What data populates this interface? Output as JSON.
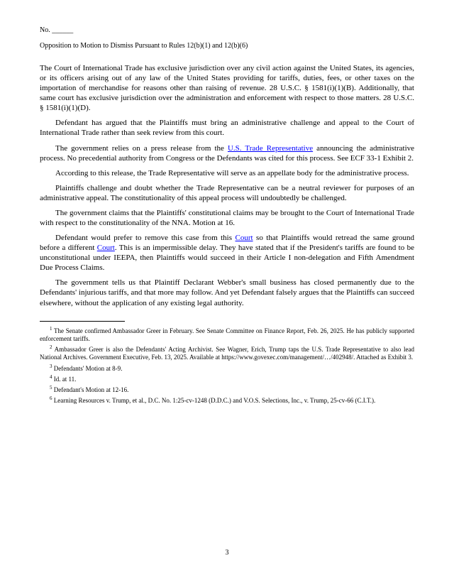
{
  "header": {
    "line1": "No. ______",
    "line2": "Opposition to Motion to Dismiss Pursuant to Rules 12(b)(1) and 12(b)(6)"
  },
  "paragraphs": [
    "The Court of International Trade has exclusive jurisdiction over any civil action against the United States, its agencies, or its officers arising out of any law of the United States providing for tariffs, duties, fees, or other taxes on the importation of merchandise for reasons other than raising of revenue. 28 U.S.C. § 1581(i)(1)(B). Additionally, that same court has exclusive jurisdiction over the administration and enforcement with respect to those matters. 28 U.S.C. § 1581(i)(1)(D).",
    "Defendant has argued that the Plaintiffs must bring an administrative challenge and appeal to the Court of International Trade rather than seek review from this court.",
    "The government relies on a press release from the ",
    "According to this release, the Trade Representative will serve as an appellate body for the administrative process.",
    "Plaintiffs challenge and doubt whether the Trade Representative can be a neutral reviewer for purposes of an administrative appeal. The constitutionality of this appeal process will undoubtedly be challenged.",
    "The government claims that the Plaintiffs' constitutional claims may be brought to the Court of International Trade with respect to the constitutionality of the NNA. Motion at 16.",
    "Defendant would prefer to remove this case from this ",
    ". This is an impermissible delay. They have stated that if the President's tariffs are found to be unconstitutional under IEEPA, then Plaintiffs would succeed in their Article I non-delegation and Fifth Amendment Due Process Claims.",
    "The government tells us that Plaintiff Declarant Webber's small business has closed permanently due to the Defendants' injurious tariffs, and that more may follow. And yet Defendant falsely argues that the Plaintiffs can succeed elsewhere, without the application of any existing legal authority."
  ],
  "link1_text": "U.S. Trade Representative",
  "link1_tail": " announcing the administrative process. No precedential authority from Congress or the Defendants was cited for this process. See ECF 33-1 Exhibit 2.",
  "link2_pre": "Court",
  "link2_tail": " so that Plaintiffs would retread the same ground before a different ",
  "footnotes": [
    {
      "num": "1",
      "text": "The Senate confirmed Ambassador Greer in February. See Senate Committee on Finance Report, Feb. 26, 2025. He has publicly supported enforcement tariffs."
    },
    {
      "num": "2",
      "text": "Ambassador Greer is also the Defendants' Acting Archivist. See Wagner, Erich, Trump taps the U.S. Trade Representative to also lead National Archives. Government Executive, Feb. 13, 2025. Available at https://www.govexec.com/management/…/402948/. Attached as Exhibit 3."
    },
    {
      "num": "3",
      "text": "Defendants' Motion at 8-9."
    },
    {
      "num": "4",
      "text": "Id. at 11."
    },
    {
      "num": "5",
      "text": "Defendant's Motion at 12-16."
    },
    {
      "num": "6",
      "text": "Learning Resources v. Trump, et al., D.C. No. 1:25-cv-1248 (D.D.C.) and V.O.S. Selections, Inc., v. Trump, 25-cv-66 (C.I.T.)."
    }
  ],
  "links": {
    "ustr": "U.S. Trade Representative",
    "court": "Court"
  },
  "colors": {
    "link": "#0000ff",
    "text": "#000000",
    "bg": "#ffffff"
  },
  "page_number": "3"
}
